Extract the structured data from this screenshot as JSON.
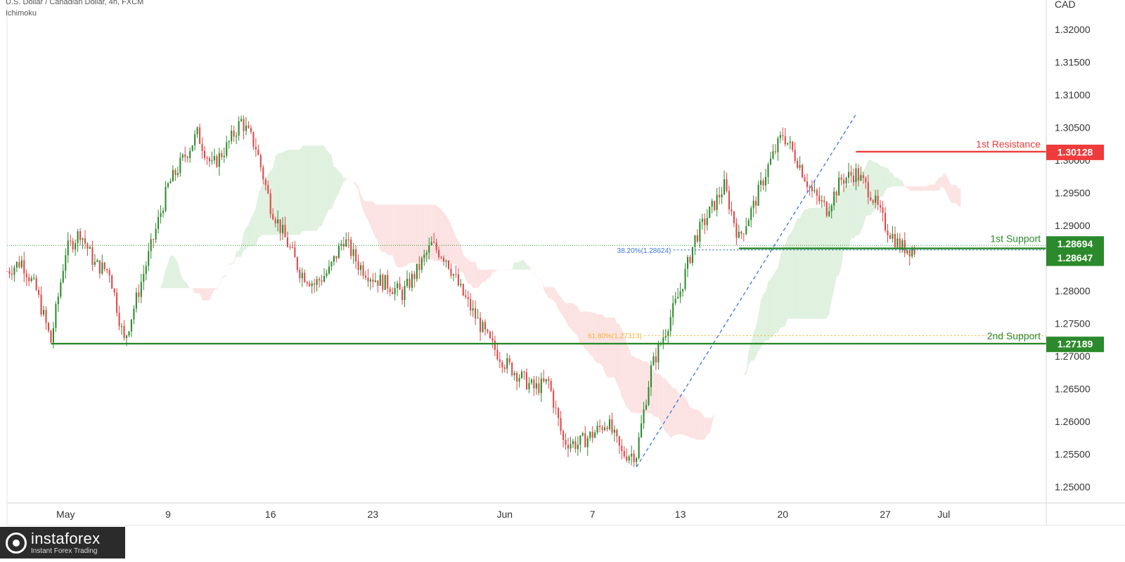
{
  "header": {
    "symbol_line": "U.S. Dollar / Canadian Dollar, 4h, FXCM",
    "indicator": "Ichimoku",
    "currency": "CAD"
  },
  "colors": {
    "up": "#2e8b2e",
    "down": "#e04848",
    "support": "#2b8a2b",
    "resistance": "#ef3b3b",
    "fib382": "#3a78d8",
    "fib618": "#f2b233",
    "trend": "#3a78d8",
    "cloud_bull": "#d8eed8",
    "cloud_bear": "#fbdcdc"
  },
  "chart_data": {
    "type": "candlestick",
    "title": "U.S. Dollar / Canadian Dollar, 4h, FXCM",
    "ylabel": "CAD",
    "ylim": [
      1.2475,
      1.3245
    ],
    "y_ticks": [
      "1.32000",
      "1.31500",
      "1.31000",
      "1.30500",
      "1.30000",
      "1.29500",
      "1.29000",
      "1.28000",
      "1.27500",
      "1.27000",
      "1.26500",
      "1.26000",
      "1.25500",
      "1.25000"
    ],
    "x_ticks": [
      {
        "label": "May",
        "date": "2022-05-02"
      },
      {
        "label": "9",
        "date": "2022-05-09"
      },
      {
        "label": "16",
        "date": "2022-05-16"
      },
      {
        "label": "23",
        "date": "2022-05-23"
      },
      {
        "label": "Jun",
        "date": "2022-06-01"
      },
      {
        "label": "7",
        "date": "2022-06-07"
      },
      {
        "label": "13",
        "date": "2022-06-13"
      },
      {
        "label": "20",
        "date": "2022-06-20"
      },
      {
        "label": "27",
        "date": "2022-06-27"
      },
      {
        "label": "Jul",
        "date": "2022-07-01"
      }
    ],
    "x_range": [
      "2022-04-28",
      "2022-07-08"
    ],
    "price_path": [
      [
        "2022-04-28",
        1.283
      ],
      [
        "2022-04-29",
        1.2845
      ],
      [
        "2022-04-30",
        1.28
      ],
      [
        "2022-05-01",
        1.2722
      ],
      [
        "2022-05-02",
        1.286
      ],
      [
        "2022-05-03",
        1.289
      ],
      [
        "2022-05-04",
        1.284
      ],
      [
        "2022-05-05",
        1.283
      ],
      [
        "2022-05-06",
        1.2722
      ],
      [
        "2022-05-07",
        1.28
      ],
      [
        "2022-05-08",
        1.288
      ],
      [
        "2022-05-09",
        1.296
      ],
      [
        "2022-05-10",
        1.3
      ],
      [
        "2022-05-11",
        1.304
      ],
      [
        "2022-05-12",
        1.299
      ],
      [
        "2022-05-13",
        1.302
      ],
      [
        "2022-05-14",
        1.306
      ],
      [
        "2022-05-15",
        1.302
      ],
      [
        "2022-05-16",
        1.293
      ],
      [
        "2022-05-17",
        1.288
      ],
      [
        "2022-05-18",
        1.283
      ],
      [
        "2022-05-19",
        1.281
      ],
      [
        "2022-05-20",
        1.283
      ],
      [
        "2022-05-21",
        1.288
      ],
      [
        "2022-05-22",
        1.284
      ],
      [
        "2022-05-23",
        1.282
      ],
      [
        "2022-05-24",
        1.281
      ],
      [
        "2022-05-25",
        1.2795
      ],
      [
        "2022-05-26",
        1.283
      ],
      [
        "2022-05-27",
        1.287
      ],
      [
        "2022-05-28",
        1.285
      ],
      [
        "2022-05-29",
        1.28
      ],
      [
        "2022-05-30",
        1.276
      ],
      [
        "2022-05-31",
        1.272
      ],
      [
        "2022-06-01",
        1.269
      ],
      [
        "2022-06-02",
        1.267
      ],
      [
        "2022-06-03",
        1.265
      ],
      [
        "2022-06-04",
        1.266
      ],
      [
        "2022-06-05",
        1.257
      ],
      [
        "2022-06-06",
        1.2565
      ],
      [
        "2022-06-07",
        1.258
      ],
      [
        "2022-06-08",
        1.26
      ],
      [
        "2022-06-09",
        1.255
      ],
      [
        "2022-06-10",
        1.255
      ],
      [
        "2022-06-11",
        1.268
      ],
      [
        "2022-06-12",
        1.274
      ],
      [
        "2022-06-13",
        1.28
      ],
      [
        "2022-06-14",
        1.288
      ],
      [
        "2022-06-15",
        1.292
      ],
      [
        "2022-06-16",
        1.296
      ],
      [
        "2022-06-17",
        1.288
      ],
      [
        "2022-06-18",
        1.293
      ],
      [
        "2022-06-19",
        1.299
      ],
      [
        "2022-06-20",
        1.304
      ],
      [
        "2022-06-21",
        1.3
      ],
      [
        "2022-06-22",
        1.295
      ],
      [
        "2022-06-23",
        1.2925
      ],
      [
        "2022-06-24",
        1.297
      ],
      [
        "2022-06-25",
        1.298
      ],
      [
        "2022-06-26",
        1.295
      ],
      [
        "2022-06-27",
        1.29
      ],
      [
        "2022-06-28",
        1.2868
      ],
      [
        "2022-06-29",
        1.2862
      ]
    ],
    "levels": [
      {
        "name": "1st Resistance",
        "value": 1.30128,
        "label": "1.30128",
        "start": "2022-06-25"
      },
      {
        "name": "1st Support",
        "value": 1.28647,
        "label": "1.28647",
        "start": "2022-06-17"
      },
      {
        "name": "2nd Support",
        "value": 1.27189,
        "label": "1.27189",
        "start": "2022-05-01"
      }
    ],
    "last_price": {
      "value": 1.28694,
      "label": "1.28694"
    },
    "fibonacci": [
      {
        "label": "38.20%(1.28624)",
        "value": 1.28624,
        "start": "2022-06-14"
      },
      {
        "label": "61.80%(1.27313)",
        "value": 1.27313,
        "start": "2022-06-12"
      }
    ],
    "trendline": {
      "from": [
        "2022-06-10",
        1.253
      ],
      "to": [
        "2022-06-25",
        1.307
      ]
    },
    "legend": "none",
    "grid": false
  },
  "footer": {
    "brand": "instaforex",
    "tagline": "Instant Forex Trading"
  }
}
